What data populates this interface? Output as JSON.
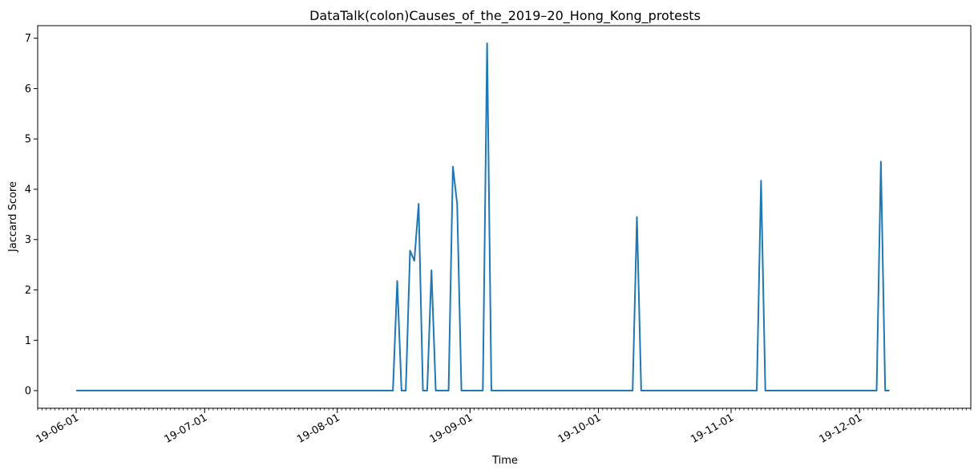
{
  "chart_data": {
    "type": "line",
    "title": "DataTalk(colon)Causes_of_the_2019–20_Hong_Kong_protests",
    "xlabel": "Time",
    "ylabel": "Jaccard Score",
    "xlim": [
      "2019-05-23",
      "2019-12-27"
    ],
    "ylim": [
      -0.35,
      7.25
    ],
    "x_ticks": [
      "2019-06-01",
      "2019-07-01",
      "2019-08-01",
      "2019-09-01",
      "2019-10-01",
      "2019-11-01",
      "2019-12-01"
    ],
    "x_tick_labels": [
      "19-06-01",
      "19-07-01",
      "19-08-01",
      "19-09-01",
      "19-10-01",
      "19-11-01",
      "19-12-01"
    ],
    "y_ticks": [
      0,
      1,
      2,
      3,
      4,
      5,
      6,
      7
    ],
    "y_tick_labels": [
      "0",
      "1",
      "2",
      "3",
      "4",
      "5",
      "6",
      "7"
    ],
    "grid": false,
    "color": "#1f77b4",
    "series": [
      {
        "x": [
          "2019-06-01",
          "2019-08-14",
          "2019-08-15",
          "2019-08-16",
          "2019-08-17",
          "2019-08-18",
          "2019-08-19",
          "2019-08-20",
          "2019-08-21",
          "2019-08-22",
          "2019-08-23",
          "2019-08-24",
          "2019-08-25",
          "2019-08-26",
          "2019-08-27",
          "2019-08-28",
          "2019-08-29",
          "2019-08-30",
          "2019-09-04",
          "2019-09-05",
          "2019-09-06",
          "2019-10-09",
          "2019-10-10",
          "2019-10-11",
          "2019-11-07",
          "2019-11-08",
          "2019-11-09",
          "2019-12-05",
          "2019-12-06",
          "2019-12-07",
          "2019-12-08"
        ],
        "y": [
          0,
          0,
          2.18,
          0,
          0,
          2.78,
          2.58,
          3.71,
          0,
          0,
          2.39,
          0,
          0,
          0,
          0,
          4.45,
          3.71,
          0,
          0,
          6.9,
          0,
          0,
          3.45,
          0,
          0,
          4.17,
          0,
          0,
          4.55,
          0,
          0
        ]
      }
    ]
  }
}
